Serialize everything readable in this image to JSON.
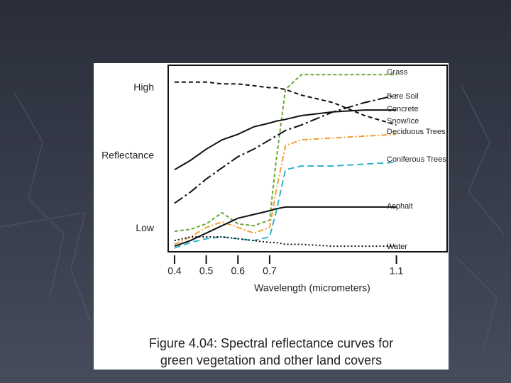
{
  "chart_data": {
    "type": "line",
    "y_label": "Reflectance",
    "x_label": "Wavelength (micrometers)",
    "caption": [
      "Figure 4.04:  Spectral reflectance curves for",
      "green vegetation and other land covers"
    ],
    "x": [
      0.4,
      0.45,
      0.5,
      0.55,
      0.6,
      0.65,
      0.7,
      0.72,
      0.75,
      0.8,
      0.9,
      1.0,
      1.1
    ],
    "xlim": [
      0.38,
      1.26
    ],
    "xticks": [
      0.4,
      0.5,
      0.6,
      0.7,
      1.1
    ],
    "ylim": [
      0,
      100
    ],
    "yticks": [
      {
        "value": 12.5,
        "label": "Low"
      },
      {
        "value": 88,
        "label": "High"
      }
    ],
    "series": [
      {
        "name": "Grass",
        "color": "#6aa832",
        "dash": "5,3",
        "values": [
          11,
          12,
          15,
          21,
          15,
          14,
          17,
          48,
          87,
          95,
          95,
          95,
          95
        ]
      },
      {
        "name": "Bare Soil",
        "color": "#111111",
        "dash": "14,4,3,4",
        "values": [
          26,
          32,
          39,
          45,
          51,
          55,
          60,
          62,
          65,
          68,
          75,
          80,
          84
        ]
      },
      {
        "name": "Concrete",
        "color": "#111111",
        "dash": "none",
        "values": [
          44,
          49,
          55,
          60,
          63,
          67,
          69,
          70,
          71,
          73,
          75,
          76,
          76
        ]
      },
      {
        "name": "Snow/Ice",
        "color": "#111111",
        "dash": "6,4",
        "values": [
          91,
          91,
          91,
          90,
          90,
          89,
          88,
          88,
          87,
          84,
          80,
          73,
          68
        ]
      },
      {
        "name": "Deciduous Trees",
        "color": "#f0a030",
        "dash": "8,3,2,3",
        "values": [
          4,
          8,
          13,
          16,
          13,
          10,
          13,
          32,
          57,
          60,
          61,
          62,
          63
        ]
      },
      {
        "name": "Coniferous Trees",
        "color": "#30b4c8",
        "dash": "9,5",
        "values": [
          2,
          5,
          7,
          8,
          7,
          6,
          8,
          21,
          44,
          46,
          46,
          47,
          48
        ]
      },
      {
        "name": "Asphalt",
        "color": "#111111",
        "dash": "none",
        "values": [
          3,
          6,
          10,
          14,
          18,
          20,
          22,
          23,
          24,
          24,
          24,
          24,
          24
        ]
      },
      {
        "name": "Water",
        "color": "#111111",
        "dash": "2,3",
        "values": [
          6,
          8,
          8,
          8,
          7,
          6,
          5,
          5,
          4,
          4,
          3,
          3,
          3
        ]
      }
    ]
  }
}
